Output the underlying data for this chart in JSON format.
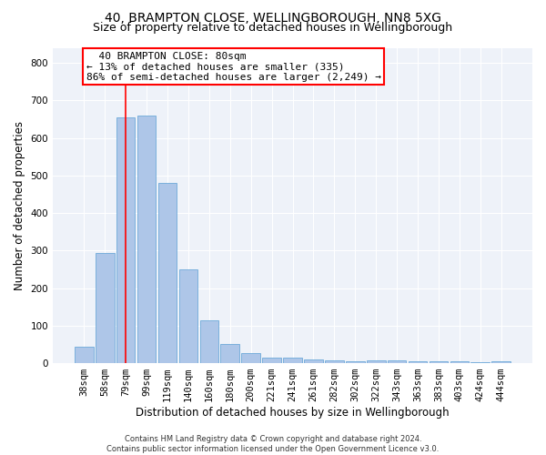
{
  "title": "40, BRAMPTON CLOSE, WELLINGBOROUGH, NN8 5XG",
  "subtitle": "Size of property relative to detached houses in Wellingborough",
  "xlabel": "Distribution of detached houses by size in Wellingborough",
  "ylabel": "Number of detached properties",
  "categories": [
    "38sqm",
    "58sqm",
    "79sqm",
    "99sqm",
    "119sqm",
    "140sqm",
    "160sqm",
    "180sqm",
    "200sqm",
    "221sqm",
    "241sqm",
    "261sqm",
    "282sqm",
    "302sqm",
    "322sqm",
    "343sqm",
    "363sqm",
    "383sqm",
    "403sqm",
    "424sqm",
    "444sqm"
  ],
  "values": [
    45,
    293,
    655,
    660,
    480,
    250,
    113,
    50,
    26,
    15,
    15,
    10,
    7,
    6,
    8,
    8,
    5,
    4,
    4,
    2,
    6
  ],
  "bar_color": "#aec6e8",
  "bar_edge_color": "#5a9fd4",
  "vline_x": 2,
  "vline_color": "red",
  "annotation_text": "  40 BRAMPTON CLOSE: 80sqm\n← 13% of detached houses are smaller (335)\n86% of semi-detached houses are larger (2,249) →",
  "annotation_box_color": "white",
  "annotation_box_edge": "red",
  "ylim": [
    0,
    840
  ],
  "yticks": [
    0,
    100,
    200,
    300,
    400,
    500,
    600,
    700,
    800
  ],
  "background_color": "#eef2f9",
  "footer": "Contains HM Land Registry data © Crown copyright and database right 2024.\nContains public sector information licensed under the Open Government Licence v3.0.",
  "title_fontsize": 10,
  "subtitle_fontsize": 9,
  "xlabel_fontsize": 8.5,
  "ylabel_fontsize": 8.5,
  "tick_fontsize": 7.5,
  "annotation_fontsize": 8,
  "footer_fontsize": 6
}
